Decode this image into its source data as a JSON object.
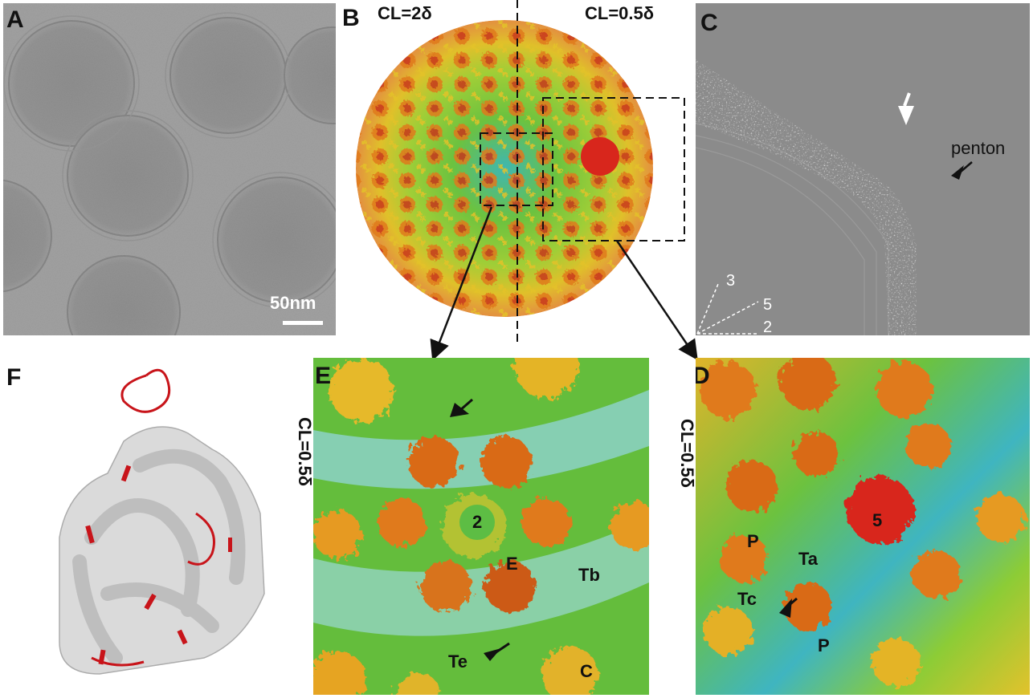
{
  "panels": {
    "A": {
      "label": "A",
      "scale_bar": "50nm"
    },
    "B": {
      "label": "B",
      "left_cl": "CL=2δ",
      "right_cl": "CL=0.5δ"
    },
    "C": {
      "label": "C",
      "penton": "penton",
      "axis_3": "3",
      "axis_5": "5",
      "axis_2": "2"
    },
    "D": {
      "label": "D",
      "cl": "CL=0.5δ",
      "p1": "P",
      "five": "5",
      "ta": "Ta",
      "tc": "Tc",
      "p2": "P"
    },
    "E": {
      "label": "E",
      "cl": "CL=0.5δ",
      "two": "2",
      "e": "E",
      "tb": "Tb",
      "te": "Te",
      "c": "C"
    },
    "F": {
      "label": "F"
    }
  },
  "colors": {
    "red": "#d8261c",
    "orange": "#e8741c",
    "yellow": "#e6c92a",
    "green": "#5cb83a",
    "cyan": "#3ab8c8",
    "gray_bg": "#8a8a8a",
    "cryo_bg": "#9a9a9a"
  }
}
